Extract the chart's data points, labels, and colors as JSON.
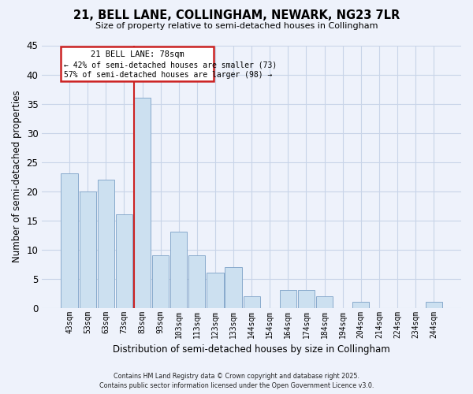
{
  "title": "21, BELL LANE, COLLINGHAM, NEWARK, NG23 7LR",
  "subtitle": "Size of property relative to semi-detached houses in Collingham",
  "xlabel": "Distribution of semi-detached houses by size in Collingham",
  "ylabel": "Number of semi-detached properties",
  "annotation_title": "21 BELL LANE: 78sqm",
  "annotation_line1": "← 42% of semi-detached houses are smaller (73)",
  "annotation_line2": "57% of semi-detached houses are larger (98) →",
  "categories": [
    "43sqm",
    "53sqm",
    "63sqm",
    "73sqm",
    "83sqm",
    "93sqm",
    "103sqm",
    "113sqm",
    "123sqm",
    "133sqm",
    "144sqm",
    "154sqm",
    "164sqm",
    "174sqm",
    "184sqm",
    "194sqm",
    "204sqm",
    "214sqm",
    "224sqm",
    "234sqm",
    "244sqm"
  ],
  "values": [
    23,
    20,
    22,
    16,
    36,
    9,
    13,
    9,
    6,
    7,
    2,
    0,
    3,
    3,
    2,
    0,
    1,
    0,
    0,
    0,
    1
  ],
  "bar_color": "#cce0f0",
  "bar_edge_color": "#88aacc",
  "red_line_index": 4,
  "ylim": [
    0,
    45
  ],
  "yticks": [
    0,
    5,
    10,
    15,
    20,
    25,
    30,
    35,
    40,
    45
  ],
  "grid_color": "#c8d4e8",
  "background_color": "#eef2fb",
  "ann_box_color": "#cc2222",
  "ann_bg_color": "#ffffff",
  "footer_line1": "Contains HM Land Registry data © Crown copyright and database right 2025.",
  "footer_line2": "Contains public sector information licensed under the Open Government Licence v3.0."
}
